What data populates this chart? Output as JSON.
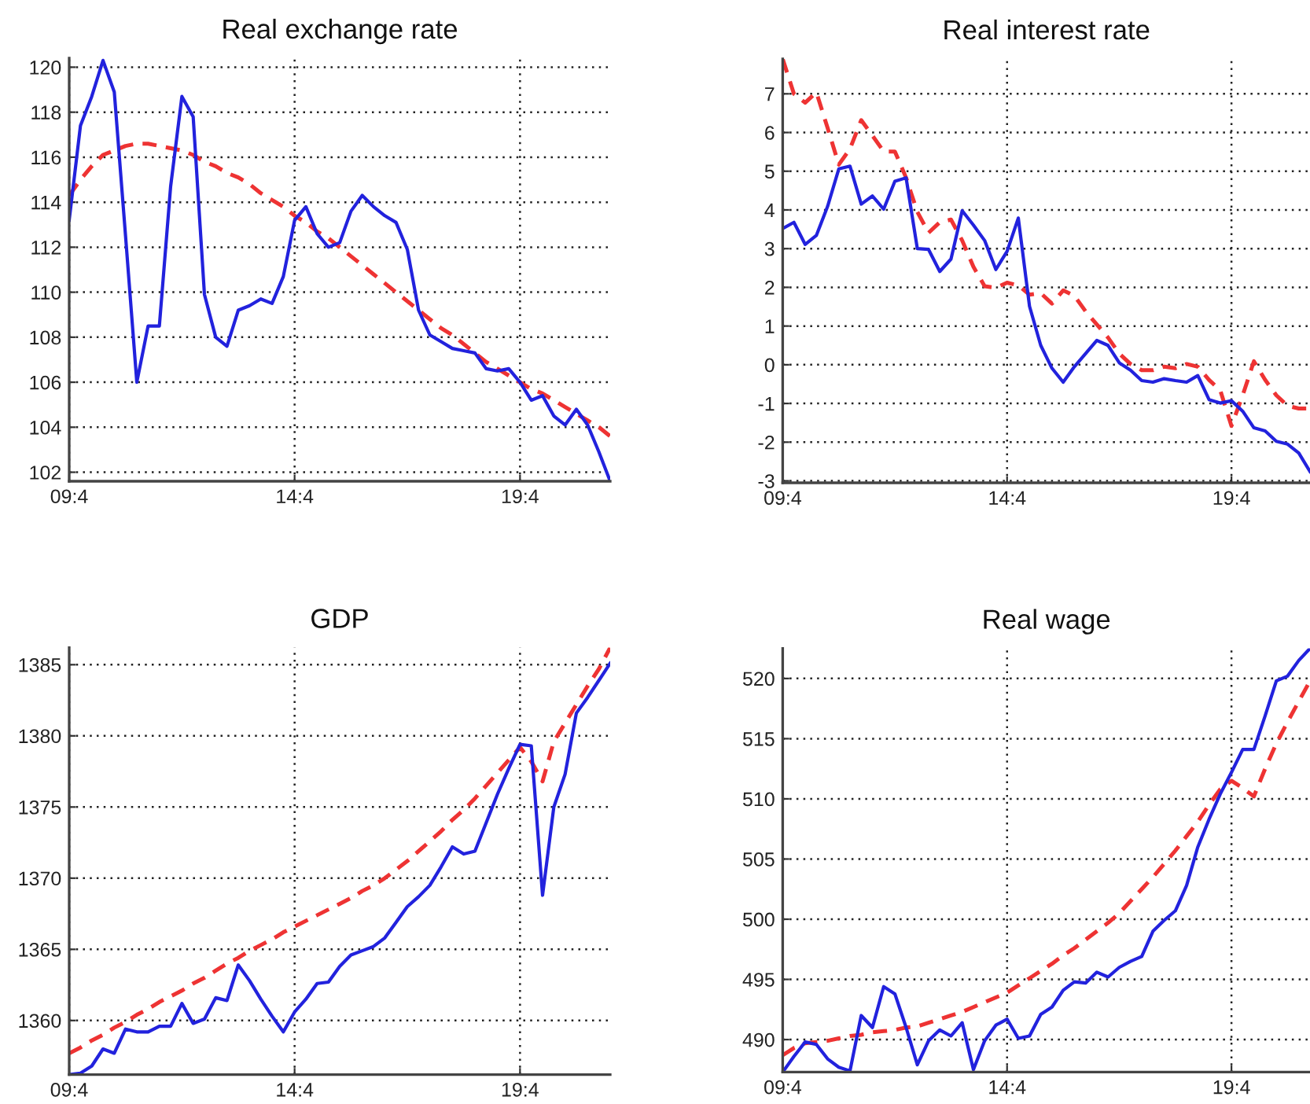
{
  "chart_data": [
    {
      "type": "line",
      "title": "Real exchange rate",
      "categories": [
        "09:4",
        null,
        null,
        null,
        null,
        null,
        null,
        null,
        null,
        null,
        null,
        null,
        null,
        null,
        null,
        null,
        null,
        null,
        null,
        null,
        "14:4",
        null,
        null,
        null,
        null,
        null,
        null,
        null,
        null,
        null,
        null,
        null,
        null,
        null,
        null,
        null,
        null,
        null,
        null,
        null,
        "19:4",
        null,
        null,
        null,
        null,
        null,
        null,
        null,
        null
      ],
      "ylim": [
        101.6,
        120.4
      ],
      "yticks": [
        102,
        104,
        106,
        108,
        110,
        112,
        114,
        116,
        118,
        120
      ],
      "grid": true,
      "series": [
        {
          "color": "#2222dd",
          "line_style": "solid",
          "values": [
            113.2,
            117.4,
            118.7,
            120.3,
            118.9,
            112.5,
            106.0,
            108.5,
            108.5,
            114.7,
            118.7,
            117.8,
            109.9,
            108.0,
            107.6,
            109.2,
            109.4,
            109.7,
            109.5,
            110.7,
            113.2,
            113.8,
            112.6,
            112.0,
            112.2,
            113.6,
            114.3,
            113.8,
            113.4,
            113.1,
            111.9,
            109.2,
            108.1,
            107.8,
            107.5,
            107.4,
            107.3,
            106.6,
            106.5,
            106.6,
            106.0,
            105.2,
            105.4,
            104.5,
            104.1,
            104.8,
            104.1,
            102.9,
            101.6
          ]
        },
        {
          "color": "#ee3333",
          "line_style": "dashed",
          "values": [
            114.3,
            115.0,
            115.6,
            116.1,
            116.3,
            116.5,
            116.6,
            116.6,
            116.5,
            116.4,
            116.3,
            116.1,
            115.8,
            115.6,
            115.3,
            115.1,
            114.8,
            114.4,
            114.1,
            113.8,
            113.4,
            113.1,
            112.7,
            112.4,
            112.0,
            111.6,
            111.2,
            110.8,
            110.4,
            110.0,
            109.6,
            109.2,
            108.8,
            108.4,
            108.1,
            107.7,
            107.3,
            106.9,
            106.6,
            106.3,
            106.0,
            105.7,
            105.5,
            105.2,
            104.9,
            104.6,
            104.3,
            104.0,
            103.6
          ]
        }
      ]
    },
    {
      "type": "line",
      "title": "Real interest rate",
      "categories": [
        "09:4",
        null,
        null,
        null,
        null,
        null,
        null,
        null,
        null,
        null,
        null,
        null,
        null,
        null,
        null,
        null,
        null,
        null,
        null,
        null,
        "14:4",
        null,
        null,
        null,
        null,
        null,
        null,
        null,
        null,
        null,
        null,
        null,
        null,
        null,
        null,
        null,
        null,
        null,
        null,
        null,
        "19:4",
        null,
        null,
        null,
        null,
        null,
        null,
        null
      ],
      "ylim": [
        -3.05,
        7.9
      ],
      "yticks": [
        -3,
        -2,
        -1,
        0,
        1,
        2,
        3,
        4,
        5,
        6,
        7
      ],
      "grid": true,
      "series": [
        {
          "color": "#2222dd",
          "line_style": "solid",
          "values": [
            3.52,
            3.68,
            3.11,
            3.34,
            4.09,
            5.06,
            5.13,
            4.15,
            4.36,
            4.02,
            4.74,
            4.83,
            3.0,
            2.98,
            2.41,
            2.73,
            3.98,
            3.61,
            3.21,
            2.46,
            2.93,
            3.79,
            1.51,
            0.5,
            -0.09,
            -0.45,
            -0.05,
            0.29,
            0.63,
            0.5,
            0.05,
            -0.14,
            -0.41,
            -0.45,
            -0.36,
            -0.41,
            -0.45,
            -0.28,
            -0.9,
            -0.99,
            -0.93,
            -1.2,
            -1.63,
            -1.71,
            -1.98,
            -2.05,
            -2.28,
            -2.76
          ]
        },
        {
          "color": "#ee3333",
          "line_style": "dashed",
          "values": [
            7.9,
            7.0,
            6.77,
            7.04,
            6.12,
            5.17,
            5.58,
            6.32,
            5.92,
            5.51,
            5.51,
            4.83,
            3.95,
            3.41,
            3.68,
            3.75,
            3.21,
            2.53,
            2.03,
            1.99,
            2.12,
            2.05,
            1.81,
            1.85,
            1.58,
            1.92,
            1.78,
            1.38,
            1.04,
            0.7,
            0.29,
            0.02,
            -0.14,
            -0.14,
            -0.05,
            -0.09,
            0.02,
            -0.05,
            -0.39,
            -0.66,
            -1.58,
            -0.79,
            0.09,
            -0.39,
            -0.79,
            -1.06,
            -1.13,
            -1.13
          ]
        }
      ]
    },
    {
      "type": "line",
      "title": "GDP",
      "categories": [
        "09:4",
        null,
        null,
        null,
        null,
        null,
        null,
        null,
        null,
        null,
        null,
        null,
        null,
        null,
        null,
        null,
        null,
        null,
        null,
        null,
        "14:4",
        null,
        null,
        null,
        null,
        null,
        null,
        null,
        null,
        null,
        null,
        null,
        null,
        null,
        null,
        null,
        null,
        null,
        null,
        null,
        "19:4",
        null,
        null,
        null,
        null,
        null,
        null,
        null,
        null
      ],
      "ylim": [
        1356.2,
        1386.2
      ],
      "yticks": [
        1360,
        1365,
        1370,
        1375,
        1380,
        1385
      ],
      "grid": true,
      "series": [
        {
          "color": "#2222dd",
          "line_style": "solid",
          "values": [
            1356.2,
            1356.3,
            1356.8,
            1358.0,
            1357.7,
            1359.4,
            1359.2,
            1359.2,
            1359.6,
            1359.6,
            1361.2,
            1359.8,
            1360.1,
            1361.6,
            1361.4,
            1363.9,
            1362.8,
            1361.5,
            1360.3,
            1359.2,
            1360.6,
            1361.5,
            1362.6,
            1362.7,
            1363.8,
            1364.6,
            1364.9,
            1365.2,
            1365.8,
            1366.9,
            1368.0,
            1368.7,
            1369.5,
            1370.8,
            1372.2,
            1371.7,
            1371.9,
            1373.9,
            1375.9,
            1377.7,
            1379.4,
            1379.3,
            1368.8,
            1375.0,
            1377.3,
            1381.6,
            1382.7,
            1383.9,
            1385.1
          ]
        },
        {
          "color": "#ee3333",
          "line_style": "dashed",
          "values": [
            1357.7,
            1358.1,
            1358.6,
            1359.0,
            1359.5,
            1359.9,
            1360.4,
            1360.8,
            1361.3,
            1361.7,
            1362.1,
            1362.6,
            1363.0,
            1363.5,
            1364.0,
            1364.4,
            1364.9,
            1365.3,
            1365.7,
            1366.2,
            1366.6,
            1367.0,
            1367.4,
            1367.8,
            1368.2,
            1368.6,
            1369.1,
            1369.5,
            1370.0,
            1370.6,
            1371.2,
            1371.9,
            1372.6,
            1373.3,
            1374.1,
            1374.8,
            1375.6,
            1376.5,
            1377.4,
            1378.3,
            1379.2,
            1378.2,
            1376.8,
            1379.6,
            1380.9,
            1382.2,
            1383.5,
            1384.7,
            1386.2
          ]
        }
      ]
    },
    {
      "type": "line",
      "title": "Real wage",
      "categories": [
        "09:4",
        null,
        null,
        null,
        null,
        null,
        null,
        null,
        null,
        null,
        null,
        null,
        null,
        null,
        null,
        null,
        null,
        null,
        null,
        null,
        "14:4",
        null,
        null,
        null,
        null,
        null,
        null,
        null,
        null,
        null,
        null,
        null,
        null,
        null,
        null,
        null,
        null,
        null,
        null,
        null,
        "19:4",
        null,
        null,
        null,
        null,
        null,
        null,
        null
      ],
      "ylim": [
        487.3,
        522.5
      ],
      "yticks": [
        490,
        495,
        500,
        505,
        510,
        515,
        520
      ],
      "grid": true,
      "series": [
        {
          "color": "#2222dd",
          "line_style": "solid",
          "values": [
            487.3,
            488.6,
            489.8,
            489.6,
            488.4,
            487.7,
            487.4,
            492.0,
            491.0,
            494.4,
            493.8,
            491.0,
            487.9,
            489.9,
            490.8,
            490.3,
            491.4,
            487.5,
            489.9,
            491.2,
            491.7,
            490.1,
            490.3,
            492.1,
            492.7,
            494.1,
            494.8,
            494.7,
            495.6,
            495.2,
            496.0,
            496.5,
            496.9,
            499.0,
            499.9,
            500.7,
            502.8,
            506.0,
            508.3,
            510.4,
            512.2,
            514.1,
            514.1,
            516.9,
            519.8,
            520.2,
            521.5,
            522.5
          ]
        },
        {
          "color": "#ee3333",
          "line_style": "dashed",
          "values": [
            488.7,
            489.3,
            489.7,
            489.8,
            489.9,
            490.1,
            490.3,
            490.4,
            490.6,
            490.7,
            490.8,
            491.0,
            491.1,
            491.4,
            491.7,
            492.0,
            492.3,
            492.7,
            493.1,
            493.5,
            493.9,
            494.5,
            495.1,
            495.7,
            496.3,
            497.0,
            497.6,
            498.3,
            499.0,
            499.7,
            500.5,
            501.5,
            502.5,
            503.5,
            504.6,
            505.7,
            506.9,
            508.1,
            509.5,
            510.8,
            511.5,
            510.9,
            510.2,
            512.5,
            514.6,
            516.4,
            518.1,
            519.8
          ]
        }
      ]
    }
  ]
}
